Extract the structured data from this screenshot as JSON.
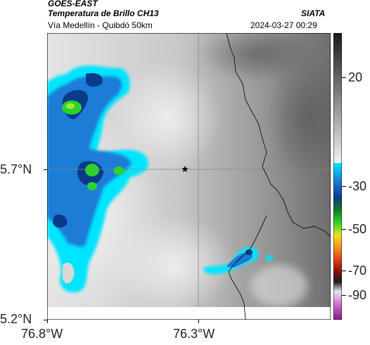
{
  "header": {
    "satellite": "GOES-EAST",
    "product": "Temperatura de Brillo CH13",
    "source": "SIATA",
    "location": "Vía Medellín - Quibdó 50km",
    "datetime": "2024-03-27 00:29"
  },
  "map": {
    "y_ticks": [
      "5.7°N",
      "5.2°N"
    ],
    "x_ticks": [
      "76.8°W",
      "76.3°W"
    ],
    "marker": "star-icon"
  },
  "colorbar": {
    "ticks": [
      "20",
      "-30",
      "-50",
      "-70",
      "-90"
    ],
    "colors": {
      "warm": "#e0e0e0",
      "cold1": "#00e5ff",
      "cold2": "#1b7bd6",
      "cold3": "#0a3a8a",
      "cold4": "#2ad42a",
      "cold5": "#f0e21a",
      "cold6": "#e23b1a",
      "cold7": "#b02ab0"
    }
  }
}
